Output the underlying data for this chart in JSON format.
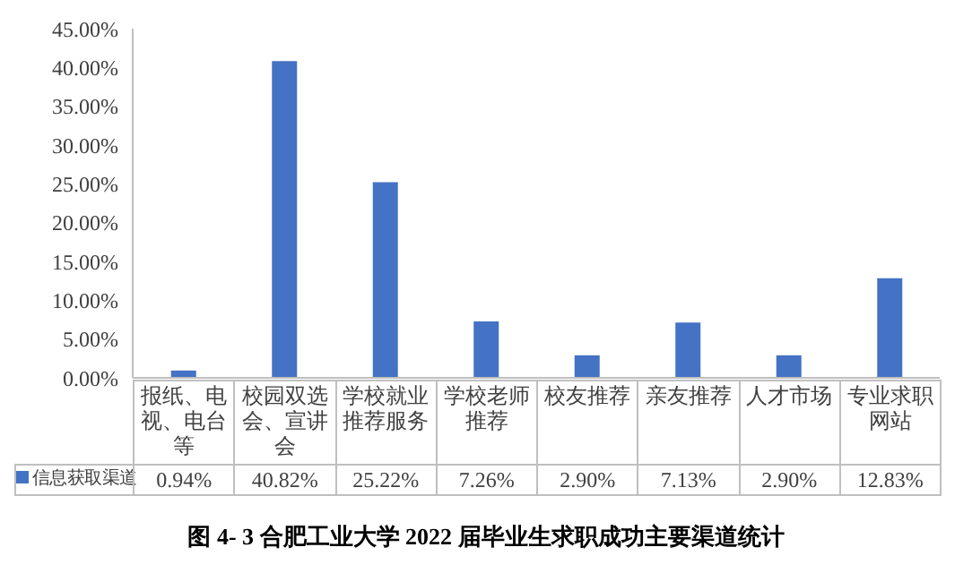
{
  "chart_data": {
    "type": "bar",
    "title": "图 4- 3 合肥工业大学 2022 届毕业生求职成功主要渠道统计",
    "categories": [
      "报纸、电视、电台等",
      "校园双选会、宣讲会",
      "学校就业推荐服务",
      "学校老师推荐",
      "校友推荐",
      "亲友推荐",
      "人才市场",
      "专业求职网站"
    ],
    "series": [
      {
        "name": "信息获取渠道",
        "color": "#4472c4",
        "values": [
          0.94,
          40.82,
          25.22,
          7.26,
          2.9,
          7.13,
          2.9,
          12.83
        ],
        "value_labels": [
          "0.94%",
          "40.82%",
          "25.22%",
          "7.26%",
          "2.90%",
          "7.13%",
          "2.90%",
          "12.83%"
        ]
      }
    ],
    "ylim": [
      0,
      45
    ],
    "yticks": [
      {
        "value": 0,
        "label": "0.00%"
      },
      {
        "value": 5,
        "label": "5.00%"
      },
      {
        "value": 10,
        "label": "10.00%"
      },
      {
        "value": 15,
        "label": "15.00%"
      },
      {
        "value": 20,
        "label": "20.00%"
      },
      {
        "value": 25,
        "label": "25.00%"
      },
      {
        "value": 30,
        "label": "30.00%"
      },
      {
        "value": 35,
        "label": "35.00%"
      },
      {
        "value": 40,
        "label": "40.00%"
      },
      {
        "value": 45,
        "label": "45.00%"
      }
    ],
    "grid": false,
    "legend": "bottom"
  }
}
